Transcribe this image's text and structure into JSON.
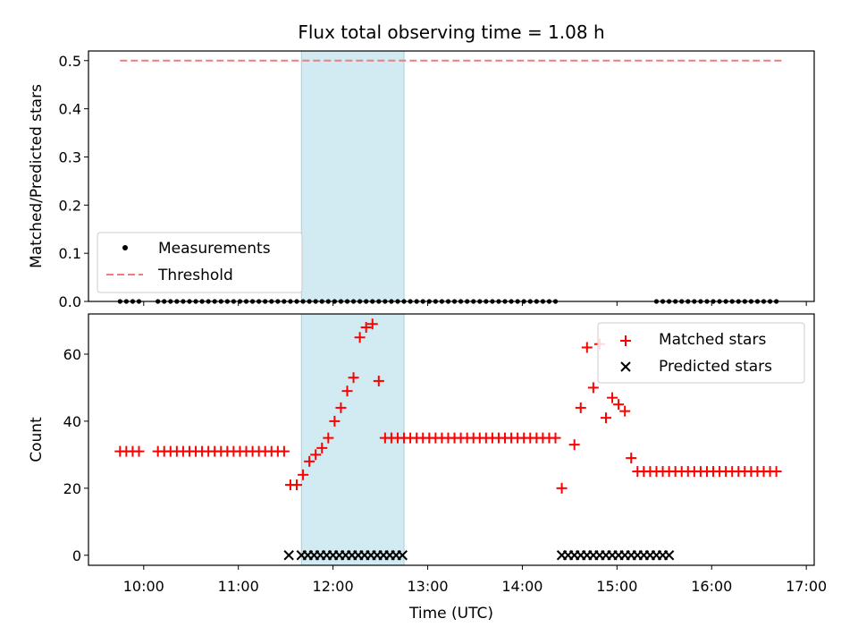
{
  "figure": {
    "title": "Flux total observing time = 1.08 h"
  },
  "colors": {
    "measurements": "#000000",
    "threshold": "#f07c7c",
    "matched": "#ff0000",
    "predicted": "#000000",
    "observing_window": "#add8e6"
  },
  "chart_data": [
    {
      "type": "scatter",
      "panel": "top",
      "ylabel": "Matched/Predicted stars",
      "xlabel": "",
      "xlim": [
        "09:25",
        "17:05"
      ],
      "ylim": [
        0,
        0.52
      ],
      "yticks": [
        0.0,
        0.1,
        0.2,
        0.3,
        0.4,
        0.5
      ],
      "ytick_labels": [
        "0.0",
        "0.1",
        "0.2",
        "0.3",
        "0.4",
        "0.5"
      ],
      "highlight_span": [
        "11:40",
        "12:45"
      ],
      "threshold": {
        "y": 0.5,
        "x_range": [
          "09:45",
          "16:45"
        ]
      },
      "legend": {
        "location": "lower-left",
        "entries": [
          {
            "label": "Measurements",
            "marker": "dot"
          },
          {
            "label": "Threshold",
            "marker": "dashed-line"
          }
        ]
      },
      "series": [
        {
          "name": "Measurements",
          "marker": "dot",
          "x": [
            "09:45",
            "09:49",
            "09:53",
            "09:57",
            "10:09",
            "10:13",
            "10:17",
            "10:21",
            "10:25",
            "10:29",
            "10:33",
            "10:37",
            "10:41",
            "10:45",
            "10:49",
            "10:53",
            "10:57",
            "11:01",
            "11:05",
            "11:09",
            "11:13",
            "11:17",
            "11:21",
            "11:25",
            "11:29",
            "11:33",
            "11:37",
            "11:41",
            "11:45",
            "11:49",
            "11:53",
            "11:57",
            "12:01",
            "12:05",
            "12:09",
            "12:13",
            "12:17",
            "12:21",
            "12:25",
            "12:29",
            "12:33",
            "12:37",
            "12:41",
            "12:45",
            "12:49",
            "12:53",
            "12:57",
            "13:01",
            "13:05",
            "13:09",
            "13:13",
            "13:17",
            "13:21",
            "13:25",
            "13:29",
            "13:33",
            "13:37",
            "13:41",
            "13:45",
            "13:49",
            "13:53",
            "13:57",
            "14:01",
            "14:05",
            "14:09",
            "14:13",
            "14:17",
            "14:21",
            "15:25",
            "15:29",
            "15:33",
            "15:37",
            "15:41",
            "15:45",
            "15:49",
            "15:53",
            "15:57",
            "16:01",
            "16:05",
            "16:09",
            "16:13",
            "16:17",
            "16:21",
            "16:25",
            "16:29",
            "16:33",
            "16:37",
            "16:41"
          ],
          "y": [
            0,
            0,
            0,
            0,
            0,
            0,
            0,
            0,
            0,
            0,
            0,
            0,
            0,
            0,
            0,
            0,
            0,
            0,
            0,
            0,
            0,
            0,
            0,
            0,
            0,
            0,
            0,
            0,
            0,
            0,
            0,
            0,
            0,
            0,
            0,
            0,
            0,
            0,
            0,
            0,
            0,
            0,
            0,
            0,
            0,
            0,
            0,
            0,
            0,
            0,
            0,
            0,
            0,
            0,
            0,
            0,
            0,
            0,
            0,
            0,
            0,
            0,
            0,
            0,
            0,
            0,
            0,
            0,
            0,
            0,
            0,
            0,
            0,
            0,
            0,
            0,
            0,
            0,
            0,
            0,
            0,
            0,
            0,
            0,
            0,
            0,
            0,
            0
          ]
        }
      ]
    },
    {
      "type": "scatter",
      "panel": "bottom",
      "ylabel": "Count",
      "xlabel": "Time (UTC)",
      "xlim": [
        "09:25",
        "17:05"
      ],
      "ylim": [
        -3,
        72
      ],
      "yticks": [
        0,
        20,
        40,
        60
      ],
      "ytick_labels": [
        "0",
        "20",
        "40",
        "60"
      ],
      "xticks": [
        "10:00",
        "11:00",
        "12:00",
        "13:00",
        "14:00",
        "15:00",
        "16:00",
        "17:00"
      ],
      "xtick_labels": [
        "10:00",
        "11:00",
        "12:00",
        "13:00",
        "14:00",
        "15:00",
        "16:00",
        "17:00"
      ],
      "highlight_span": [
        "11:40",
        "12:45"
      ],
      "legend": {
        "location": "upper-right",
        "entries": [
          {
            "label": "Matched stars",
            "marker": "plus"
          },
          {
            "label": "Predicted stars",
            "marker": "x"
          }
        ]
      },
      "series": [
        {
          "name": "Matched stars",
          "marker": "plus",
          "x": [
            "09:45",
            "09:49",
            "09:53",
            "09:57",
            "10:09",
            "10:13",
            "10:17",
            "10:21",
            "10:25",
            "10:29",
            "10:33",
            "10:37",
            "10:41",
            "10:45",
            "10:49",
            "10:53",
            "10:57",
            "11:01",
            "11:05",
            "11:09",
            "11:13",
            "11:17",
            "11:21",
            "11:25",
            "11:29",
            "11:33",
            "11:37",
            "11:41",
            "11:45",
            "11:49",
            "11:53",
            "11:57",
            "12:01",
            "12:05",
            "12:09",
            "12:13",
            "12:17",
            "12:21",
            "12:25",
            "12:29",
            "12:33",
            "12:37",
            "12:41",
            "12:45",
            "12:49",
            "12:53",
            "12:57",
            "13:01",
            "13:05",
            "13:09",
            "13:13",
            "13:17",
            "13:21",
            "13:25",
            "13:29",
            "13:33",
            "13:37",
            "13:41",
            "13:45",
            "13:49",
            "13:53",
            "13:57",
            "14:01",
            "14:05",
            "14:09",
            "14:13",
            "14:17",
            "14:21",
            "14:25",
            "14:33",
            "14:37",
            "14:41",
            "14:45",
            "14:49",
            "14:53",
            "14:57",
            "15:01",
            "15:05",
            "15:09",
            "15:13",
            "15:17",
            "15:21",
            "15:25",
            "15:29",
            "15:33",
            "15:37",
            "15:41",
            "15:45",
            "15:49",
            "15:53",
            "15:57",
            "16:01",
            "16:05",
            "16:09",
            "16:13",
            "16:17",
            "16:21",
            "16:25",
            "16:29",
            "16:33",
            "16:37",
            "16:41"
          ],
          "y": [
            31,
            31,
            31,
            31,
            31,
            31,
            31,
            31,
            31,
            31,
            31,
            31,
            31,
            31,
            31,
            31,
            31,
            31,
            31,
            31,
            31,
            31,
            31,
            31,
            31,
            21,
            21,
            24,
            28,
            30,
            32,
            35,
            40,
            44,
            49,
            53,
            65,
            68,
            69,
            52,
            35,
            35,
            35,
            35,
            35,
            35,
            35,
            35,
            35,
            35,
            35,
            35,
            35,
            35,
            35,
            35,
            35,
            35,
            35,
            35,
            35,
            35,
            35,
            35,
            35,
            35,
            35,
            35,
            20,
            33,
            44,
            62,
            50,
            63,
            41,
            47,
            45,
            43,
            29,
            25,
            25,
            25,
            25,
            25,
            25,
            25,
            25,
            25,
            25,
            25,
            25,
            25,
            25,
            25,
            25,
            25,
            25,
            25,
            25,
            25,
            25,
            25
          ]
        },
        {
          "name": "Predicted stars",
          "marker": "x",
          "x": [
            "11:32",
            "11:40",
            "11:44",
            "11:48",
            "11:52",
            "11:56",
            "12:00",
            "12:04",
            "12:08",
            "12:12",
            "12:16",
            "12:20",
            "12:24",
            "12:28",
            "12:32",
            "12:36",
            "12:40",
            "12:44",
            "14:25",
            "14:29",
            "14:33",
            "14:37",
            "14:41",
            "14:45",
            "14:49",
            "14:53",
            "14:57",
            "15:01",
            "15:05",
            "15:09",
            "15:13",
            "15:17",
            "15:21",
            "15:25",
            "15:29",
            "15:33"
          ],
          "y": [
            0,
            0,
            0,
            0,
            0,
            0,
            0,
            0,
            0,
            0,
            0,
            0,
            0,
            0,
            0,
            0,
            0,
            0,
            0,
            0,
            0,
            0,
            0,
            0,
            0,
            0,
            0,
            0,
            0,
            0,
            0,
            0,
            0,
            0,
            0,
            0
          ]
        }
      ]
    }
  ]
}
